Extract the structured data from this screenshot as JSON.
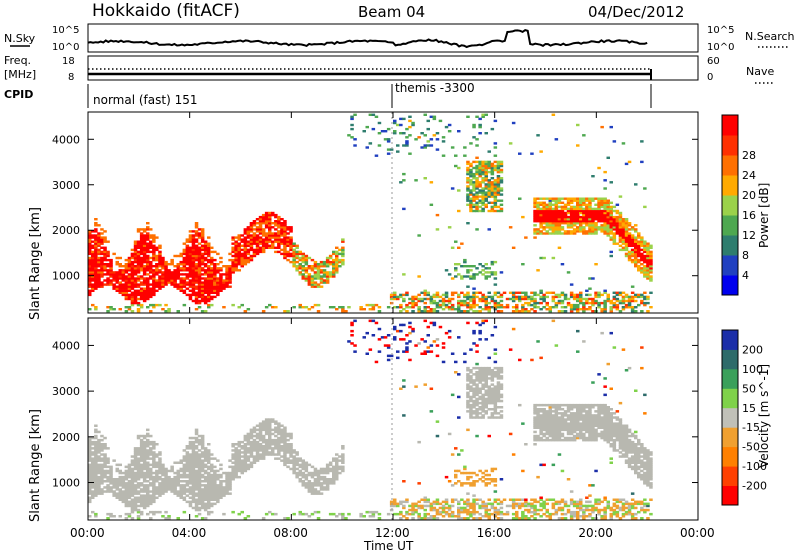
{
  "header": {
    "station": "Hokkaido (fitACF)",
    "beam": "Beam 04",
    "date": "04/Dec/2012"
  },
  "strip_labels": {
    "nsky": "N.Sky",
    "nsearch": "N.Search",
    "freq_line1": "Freq.",
    "freq_line2": "[MHz]",
    "nave": "Nave",
    "cpid": "CPID"
  },
  "strip_ticks": {
    "nsky_left": [
      "10^5",
      "10^0"
    ],
    "nsky_right": [
      "10^5",
      "10^0"
    ],
    "freq_left": [
      "18",
      "8"
    ],
    "nave_right": [
      "60",
      "0"
    ]
  },
  "cpid": {
    "left": "normal (fast) 151",
    "right": "themis -3300"
  },
  "colors": {
    "power": [
      "#0000ee",
      "#2040c0",
      "#2e7d6e",
      "#4ea850",
      "#9bd24a",
      "#ffaa00",
      "#ff7000",
      "#ff3000",
      "#ff0000"
    ],
    "velocity": [
      "#1b2ea8",
      "#2e6b6a",
      "#3aa05a",
      "#7fd24a",
      "#c0c0b8",
      "#f0a030",
      "#ff8000",
      "#ff4000",
      "#ff0000"
    ],
    "ground_scatter": "#b8b8b0"
  },
  "chart_data": [
    {
      "type": "heatmap",
      "panel": "power",
      "ylabel": "Slant Range [km]",
      "x_range_hours": [
        0,
        24
      ],
      "y_range_km": [
        180,
        4600
      ],
      "yticks": [
        "1000",
        "2000",
        "3000",
        "4000"
      ],
      "colorbar_label": "Power [dB]",
      "colorbar_ticks": [
        "4",
        "8",
        "12",
        "16",
        "20",
        "24",
        "28"
      ],
      "data_end_hour": 22.1,
      "scatter_regions": [
        {
          "t": [
            0,
            5.5
          ],
          "r": [
            500,
            2000
          ],
          "level": "high"
        },
        {
          "t": [
            5.5,
            8
          ],
          "r": [
            1100,
            2200
          ],
          "level": "high"
        },
        {
          "t": [
            8,
            10
          ],
          "r": [
            900,
            2300
          ],
          "level": "mixed"
        },
        {
          "t": [
            14.5,
            16.3
          ],
          "r": [
            2400,
            3500
          ],
          "level": "mixed"
        },
        {
          "t": [
            17.4,
            22.1
          ],
          "r": [
            1800,
            2700
          ],
          "level": "high"
        },
        {
          "t": [
            12,
            22.1
          ],
          "r": [
            180,
            700
          ],
          "level": "mixed"
        }
      ]
    },
    {
      "type": "heatmap",
      "panel": "velocity",
      "ylabel": "Slant Range [km]",
      "xlabel": "Time UT",
      "x_range_hours": [
        0,
        24
      ],
      "y_range_km": [
        180,
        4600
      ],
      "xticks": [
        "00:00",
        "04:00",
        "08:00",
        "12:00",
        "16:00",
        "20:00",
        "00:00"
      ],
      "yticks": [
        "1000",
        "2000",
        "3000",
        "4000"
      ],
      "colorbar_label": "Velocity [m s^-1]",
      "colorbar_ticks": [
        "200",
        "100",
        "50",
        "15",
        "-15",
        "-50",
        "-100",
        "-200"
      ],
      "data_end_hour": 22.1
    }
  ]
}
